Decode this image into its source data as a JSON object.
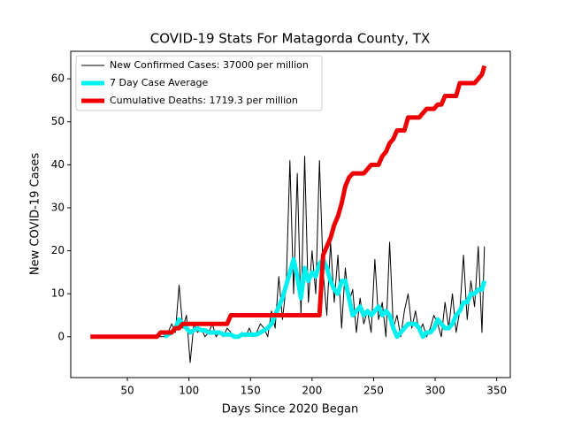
{
  "chart_data": {
    "type": "line",
    "title": "COVID-19 Stats For Matagorda County, TX",
    "xlabel": "Days Since 2020 Began",
    "ylabel": "New COVID-19 Cases",
    "xlim": [
      4,
      361
    ],
    "ylim": [
      -9.5,
      66.4
    ],
    "xticks": [
      50,
      100,
      150,
      200,
      250,
      300,
      350
    ],
    "yticks": [
      0,
      10,
      20,
      30,
      40,
      50,
      60
    ],
    "legend": "upper left",
    "x": [
      20,
      74,
      77,
      80,
      83,
      86,
      89,
      92,
      95,
      98,
      101,
      104,
      107,
      110,
      113,
      116,
      119,
      122,
      125,
      128,
      131,
      134,
      137,
      140,
      143,
      146,
      149,
      152,
      155,
      158,
      161,
      164,
      167,
      170,
      173,
      176,
      179,
      182,
      185,
      188,
      191,
      194,
      197,
      200,
      203,
      206,
      209,
      212,
      215,
      218,
      221,
      224,
      227,
      230,
      233,
      236,
      239,
      242,
      245,
      248,
      251,
      254,
      257,
      260,
      263,
      266,
      269,
      272,
      275,
      278,
      281,
      284,
      287,
      290,
      293,
      296,
      299,
      302,
      305,
      308,
      311,
      314,
      317,
      320,
      323,
      326,
      329,
      332,
      335,
      338,
      340
    ],
    "series": [
      {
        "name": "New Confirmed Cases: 37000 per million",
        "color": "#000000",
        "width": 1,
        "values": [
          null,
          0,
          0,
          0,
          1,
          3,
          1,
          12,
          2,
          5,
          -6,
          3,
          1,
          2,
          0,
          1,
          3,
          0,
          1,
          0,
          2,
          1,
          0,
          0,
          1,
          0,
          2,
          0,
          1,
          3,
          2,
          0,
          6,
          2,
          14,
          4,
          12,
          41,
          10,
          38,
          5,
          42,
          8,
          20,
          10,
          41,
          15,
          5,
          22,
          8,
          19,
          2,
          16,
          8,
          11,
          1,
          9,
          3,
          6,
          1,
          18,
          4,
          8,
          0,
          22,
          2,
          5,
          0,
          6,
          10,
          2,
          6,
          1,
          3,
          0,
          2,
          5,
          3,
          0,
          8,
          2,
          10,
          1,
          6,
          19,
          4,
          13,
          7,
          21,
          1,
          21
        ]
      },
      {
        "name": "7 Day Case Average",
        "color": "#00f0f0",
        "width": 5,
        "values": [
          null,
          null,
          null,
          0,
          0.5,
          1,
          2,
          4,
          3,
          2,
          1,
          1.5,
          2,
          1.5,
          1.5,
          1,
          1,
          1,
          1,
          0.5,
          0.5,
          0.5,
          0,
          0,
          0.5,
          0.5,
          0.5,
          0.5,
          0.5,
          1,
          1.5,
          2,
          3,
          5,
          7,
          9,
          12,
          15,
          18,
          14,
          9,
          16,
          13,
          15,
          14,
          17,
          18,
          16,
          13,
          11,
          10,
          13,
          13,
          9,
          5,
          6,
          7,
          5,
          6,
          5,
          6,
          7,
          5,
          6,
          5,
          2,
          0,
          1,
          2,
          3,
          3,
          3,
          2,
          0,
          1,
          1,
          2,
          4,
          3,
          2,
          2,
          3,
          5,
          6,
          8,
          8,
          10,
          10,
          11,
          11,
          13
        ]
      },
      {
        "name": "Cumulative Deaths: 1719.3 per million",
        "color": "#ee0000",
        "width": 5,
        "values": [
          0,
          0,
          1,
          1,
          1,
          1,
          2,
          2,
          3,
          3,
          3,
          3,
          3,
          3,
          3,
          3,
          3,
          3,
          3,
          3,
          3,
          5,
          5,
          5,
          5,
          5,
          5,
          5,
          5,
          5,
          5,
          5,
          5,
          5,
          5,
          5,
          5,
          5,
          5,
          5,
          5,
          5,
          5,
          5,
          5,
          5,
          19,
          21,
          23,
          26,
          28,
          31,
          35,
          37,
          38,
          38,
          38,
          38,
          39,
          40,
          40,
          40,
          42,
          43,
          45,
          46,
          48,
          48,
          48,
          51,
          51,
          51,
          51,
          52,
          53,
          53,
          53,
          54,
          54,
          56,
          56,
          56,
          56,
          59,
          59,
          59,
          59,
          59,
          60,
          61,
          63
        ]
      }
    ]
  }
}
